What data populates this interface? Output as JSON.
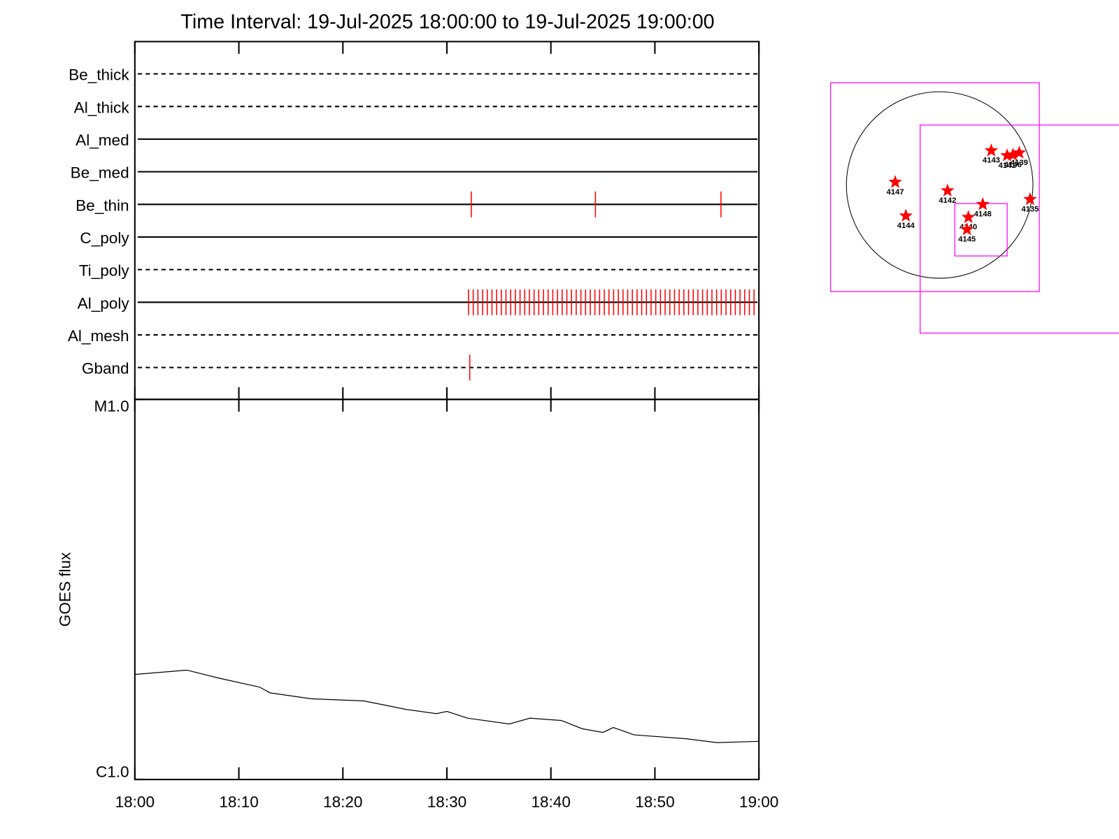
{
  "chart_data": [
    {
      "type": "timeline",
      "title": "Time Interval: 19-Jul-2025 18:00:00 to 19-Jul-2025 19:00:00",
      "categories": [
        "Be_thick",
        "Al_thick",
        "Al_med",
        "Be_med",
        "Be_thin",
        "C_poly",
        "Ti_poly",
        "Al_poly",
        "Al_mesh",
        "Gband"
      ],
      "styles": [
        "dashed",
        "dashed",
        "solid",
        "solid",
        "solid",
        "solid",
        "dashed",
        "solid",
        "dashed",
        "dashed"
      ],
      "events": [
        [],
        [],
        [],
        [],
        [
          "18:32:21",
          "18:44:17",
          "18:56:21"
        ],
        [],
        [],
        [
          "18:32:05",
          "18:32:32",
          "18:32:59",
          "18:33:26",
          "18:33:53",
          "18:34:20",
          "18:34:47",
          "18:35:14",
          "18:35:41",
          "18:36:08",
          "18:36:35",
          "18:37:02",
          "18:37:29",
          "18:37:56",
          "18:38:23",
          "18:38:50",
          "18:39:17",
          "18:39:44",
          "18:40:11",
          "18:40:38",
          "18:41:05",
          "18:41:32",
          "18:41:59",
          "18:42:26",
          "18:42:53",
          "18:43:20",
          "18:43:47",
          "18:44:14",
          "18:44:41",
          "18:45:08",
          "18:45:35",
          "18:46:02",
          "18:46:29",
          "18:46:56",
          "18:47:23",
          "18:47:50",
          "18:48:17",
          "18:48:44",
          "18:49:11",
          "18:49:38",
          "18:50:05",
          "18:50:32",
          "18:50:59",
          "18:51:26",
          "18:51:53",
          "18:52:20",
          "18:52:47",
          "18:53:14",
          "18:53:41",
          "18:54:08",
          "18:54:35",
          "18:55:02",
          "18:55:29",
          "18:55:56",
          "18:56:23",
          "18:56:50",
          "18:57:17",
          "18:57:44",
          "18:58:11",
          "18:58:38",
          "18:59:05",
          "18:59:32"
        ],
        [],
        [
          "18:32:12"
        ]
      ],
      "color": "#ff0000",
      "xlim": [
        "18:00",
        "19:00"
      ]
    },
    {
      "type": "line",
      "ylabel": "GOES flux",
      "x": [
        "18:00",
        "18:05",
        "18:08",
        "18:12",
        "18:13",
        "18:17",
        "18:22",
        "18:24",
        "18:26",
        "18:29",
        "18:30",
        "18:32",
        "18:36",
        "18:38",
        "18:41",
        "18:43",
        "18:45",
        "18:46",
        "18:48",
        "18:53",
        "18:56",
        "19:00"
      ],
      "values": [
        1.89e-06,
        1.94e-06,
        1.85e-06,
        1.75e-06,
        1.69e-06,
        1.63e-06,
        1.61e-06,
        1.57e-06,
        1.53e-06,
        1.49e-06,
        1.51e-06,
        1.45e-06,
        1.4e-06,
        1.45e-06,
        1.43e-06,
        1.36e-06,
        1.33e-06,
        1.37e-06,
        1.31e-06,
        1.28e-06,
        1.25e-06,
        1.26e-06
      ],
      "color": "#000000",
      "log_y": true,
      "xlim": [
        "18:00",
        "19:00"
      ],
      "xticks": [
        "18:00",
        "18:10",
        "18:20",
        "18:30",
        "18:40",
        "18:50",
        "19:00"
      ],
      "ylim": [
        1e-06,
        1e-05
      ],
      "yticks": [
        {
          "value": 1e-06,
          "label": "C1.0"
        },
        {
          "value": 1e-05,
          "label": "M1.0"
        }
      ]
    },
    {
      "type": "map",
      "solar_radius": 950,
      "color": "#ff0000",
      "box_color": "#ff00ff",
      "labels": [
        "4143",
        "4141",
        "4146",
        "4139",
        "4147",
        "4142",
        "4148",
        "4135",
        "4144",
        "4140",
        "4145"
      ],
      "x": [
        526,
        687,
        746,
        811,
        -453,
        80,
        439,
        921,
        -344,
        292,
        278
      ],
      "y": [
        351,
        300,
        307,
        329,
        29,
        -58,
        -197,
        -146,
        -314,
        -329,
        -453
      ],
      "boxes": [
        {
          "x": -48,
          "y": -22,
          "size": 2127
        },
        {
          "x": 861,
          "y": -449,
          "size": 2120
        },
        {
          "x": 421,
          "y": -456,
          "size": 534
        }
      ]
    }
  ]
}
